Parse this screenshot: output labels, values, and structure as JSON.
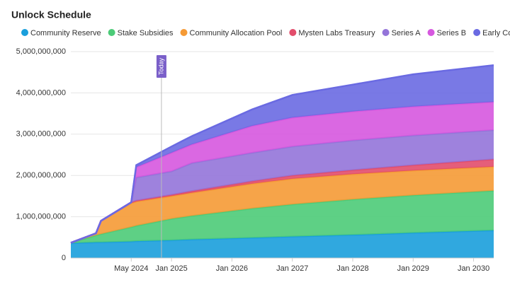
{
  "chart_data": {
    "type": "stacked-area",
    "title": "Unlock Schedule",
    "x": [
      "2023-05",
      "2023-10",
      "2023-11",
      "2024-05",
      "2024-06",
      "2025-01",
      "2025-05",
      "2026-05",
      "2027-01",
      "2028-01",
      "2029-01",
      "2030-05"
    ],
    "xlim": [
      "2023-05",
      "2030-05"
    ],
    "xticks": [
      {
        "value": "2024-05",
        "label": "May 2024"
      },
      {
        "value": "2025-01",
        "label": "Jan 2025"
      },
      {
        "value": "2026-01",
        "label": "Jan 2026"
      },
      {
        "value": "2027-01",
        "label": "Jan 2027"
      },
      {
        "value": "2028-01",
        "label": "Jan 2028"
      },
      {
        "value": "2029-01",
        "label": "Jan 2029"
      },
      {
        "value": "2030-01",
        "label": "Jan 2030"
      }
    ],
    "ylim": [
      0,
      5000000000
    ],
    "yticks": [
      0,
      {
        "value": 1000000000,
        "label": "1,000,000,000"
      },
      {
        "value": 2000000000,
        "label": "2,000,000,000"
      },
      {
        "value": 3000000000,
        "label": "3,000,000,000"
      },
      {
        "value": 4000000000,
        "label": "4,000,000,000"
      },
      {
        "value": 5000000000,
        "label": "5,000,000,000"
      }
    ],
    "grid": true,
    "annotations": [
      {
        "x": "2024-11",
        "label": "Today"
      }
    ],
    "series": [
      {
        "name": "Community Reserve",
        "color": "#1a9fdc",
        "values": [
          360000000,
          380000000,
          380000000,
          400000000,
          410000000,
          430000000,
          450000000,
          490000000,
          520000000,
          560000000,
          610000000,
          670000000
        ]
      },
      {
        "name": "Stake Subsidies",
        "color": "#4ccb78",
        "values": [
          10000000,
          170000000,
          200000000,
          350000000,
          370000000,
          520000000,
          570000000,
          710000000,
          780000000,
          860000000,
          910000000,
          960000000
        ]
      },
      {
        "name": "Community Allocation Pool",
        "color": "#f59a35",
        "values": [
          0,
          50000000,
          320000000,
          580000000,
          590000000,
          550000000,
          560000000,
          600000000,
          620000000,
          610000000,
          600000000,
          580000000
        ]
      },
      {
        "name": "Mysten Labs Treasury",
        "color": "#e24d6b",
        "values": [
          0,
          0,
          0,
          20000000,
          20000000,
          30000000,
          40000000,
          60000000,
          80000000,
          100000000,
          130000000,
          180000000
        ]
      },
      {
        "name": "Series A",
        "color": "#9474d9",
        "values": [
          0,
          0,
          0,
          0,
          560000000,
          570000000,
          680000000,
          690000000,
          700000000,
          720000000,
          720000000,
          710000000
        ]
      },
      {
        "name": "Series B",
        "color": "#d658df",
        "values": [
          0,
          0,
          0,
          0,
          250000000,
          450000000,
          450000000,
          650000000,
          700000000,
          700000000,
          700000000,
          680000000
        ]
      },
      {
        "name": "Early Contributors",
        "color": "#6a6ae2",
        "values": [
          0,
          0,
          0,
          0,
          50000000,
          150000000,
          200000000,
          400000000,
          550000000,
          650000000,
          780000000,
          890000000
        ]
      }
    ]
  }
}
